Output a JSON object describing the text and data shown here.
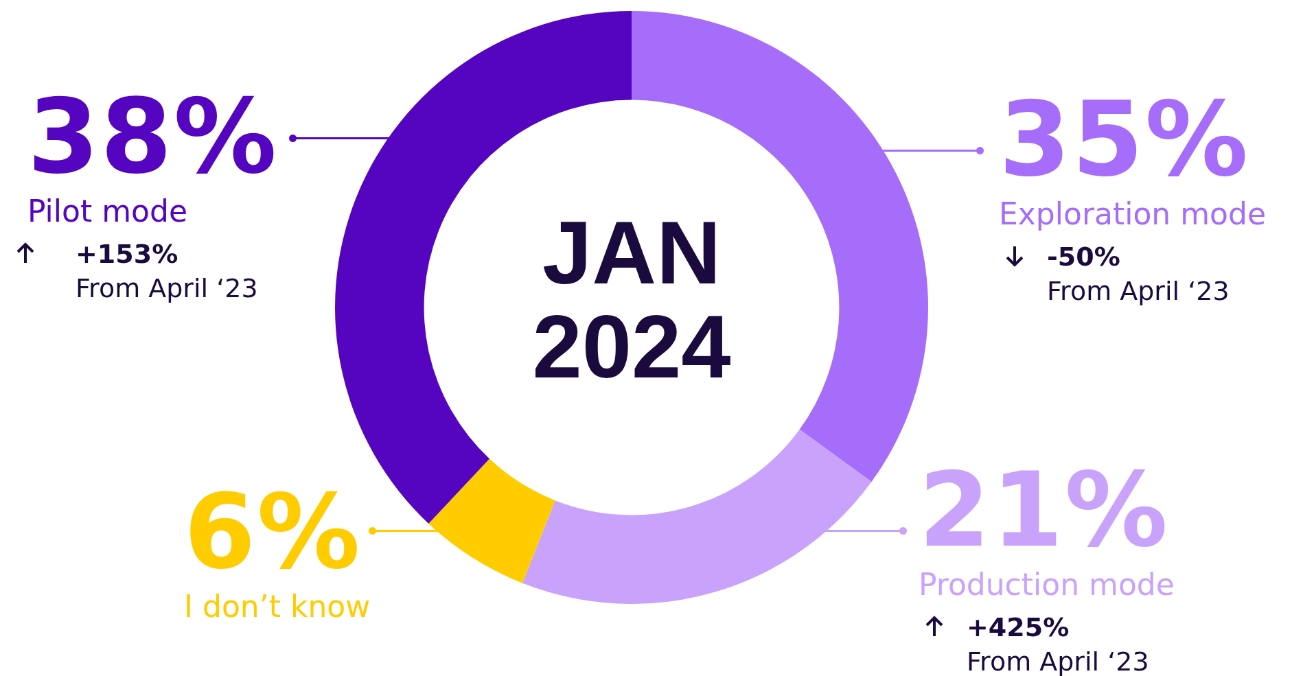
{
  "chart_data": {
    "type": "donut",
    "title": "JAN 2024",
    "categories": [
      "Exploration mode",
      "Production mode",
      "I don’t know",
      "Pilot mode"
    ],
    "values": [
      35,
      21,
      6,
      38
    ],
    "value_labels": [
      "35%",
      "21%",
      "6%",
      "38%"
    ],
    "colors": [
      "#a66cfa",
      "#c9a2fc",
      "#ffcc00",
      "#5505bf"
    ],
    "legend": false,
    "annotations": [
      {
        "text": "-50%",
        "x": "Exploration mode"
      },
      {
        "text": "From April ‘23",
        "x": "Exploration mode"
      },
      {
        "text": "+425%",
        "x": "Production mode"
      },
      {
        "text": "From April ‘23",
        "x": "Production mode"
      },
      {
        "text": "+153%",
        "x": "Pilot mode"
      },
      {
        "text": "From April ‘23",
        "x": "Pilot mode"
      }
    ]
  }
}
